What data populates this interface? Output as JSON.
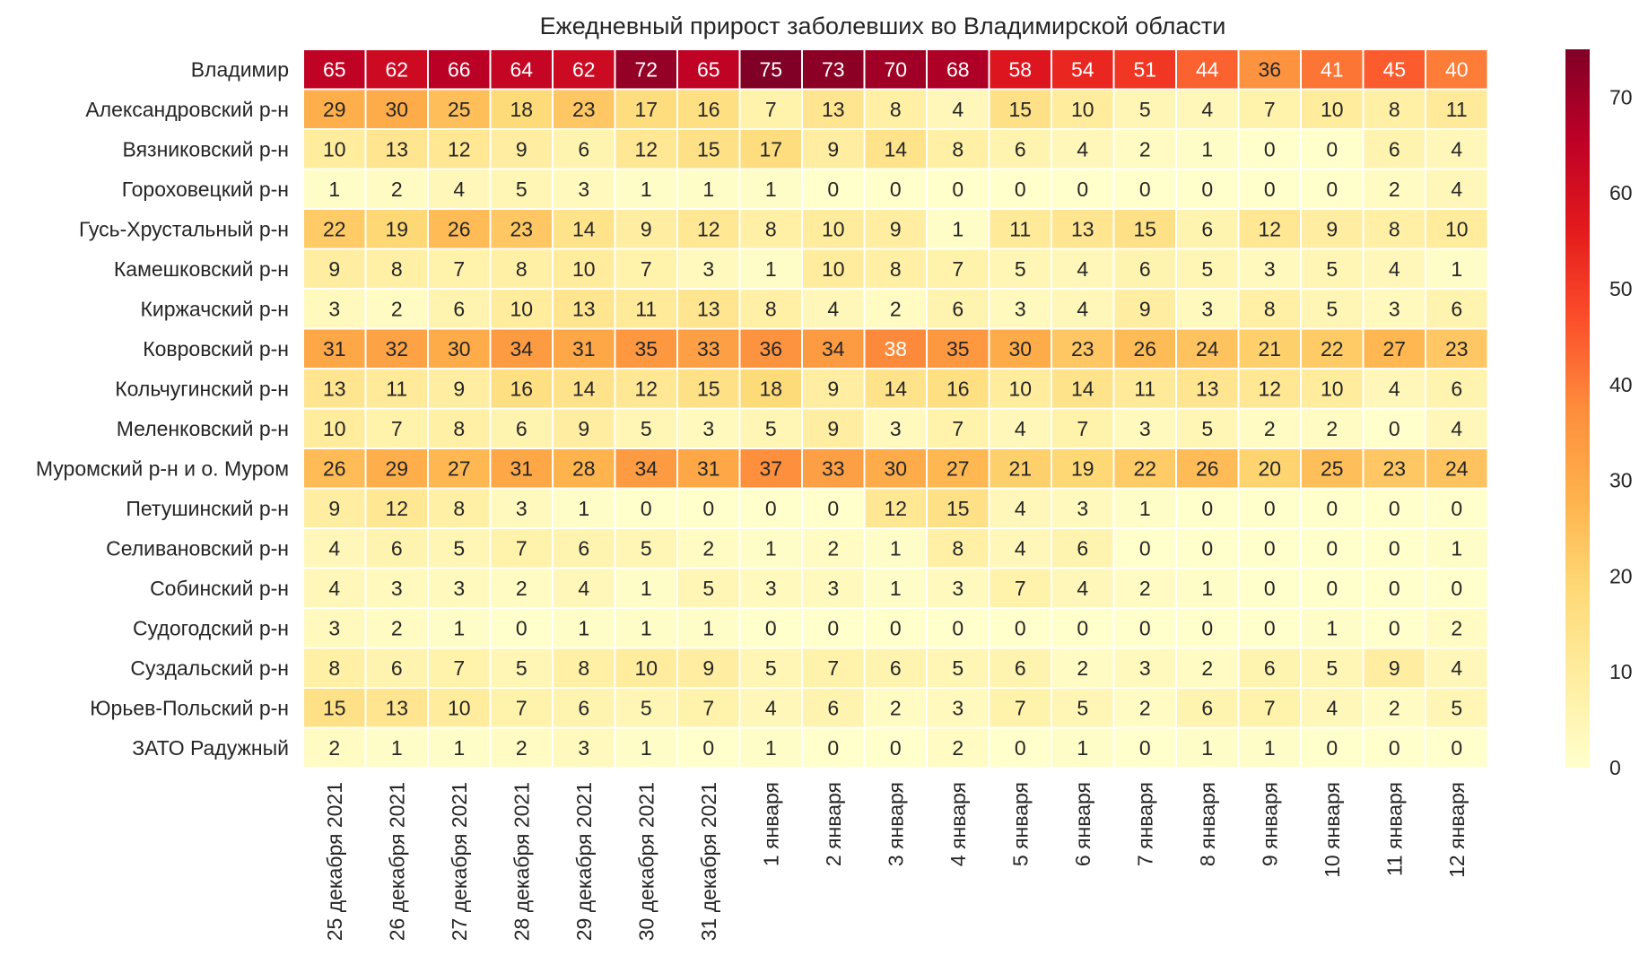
{
  "chart_data": {
    "type": "heatmap",
    "title": "Ежедневный прирост заболевших во Владимирской области",
    "xlabel": "",
    "ylabel": "",
    "columns": [
      "25 декабря 2021",
      "26 декабря 2021",
      "27 декабря 2021",
      "28 декабря 2021",
      "29 декабря 2021",
      "30 декабря 2021",
      "31 декабря 2021",
      "1 января",
      "2 января",
      "3 января",
      "4 января",
      "5 января",
      "6 января",
      "7 января",
      "8 января",
      "9 января",
      "10 января",
      "11 января",
      "12 января"
    ],
    "rows": [
      "Владимир",
      "Александровский р-н",
      "Вязниковский р-н",
      "Гороховецкий р-н",
      "Гусь-Хрустальный р-н",
      "Камешковский р-н",
      "Киржачский р-н",
      "Ковровский р-н",
      "Кольчугинский р-н",
      "Меленковский р-н",
      "Муромский р-н и о. Муром",
      "Петушинский р-н",
      "Селивановский р-н",
      "Собинский р-н",
      "Судогодский р-н",
      "Суздальский р-н",
      "Юрьев-Польский р-н",
      "ЗАТО Радужный"
    ],
    "values": [
      [
        65,
        62,
        66,
        64,
        62,
        72,
        65,
        75,
        73,
        70,
        68,
        58,
        54,
        51,
        44,
        36,
        41,
        45,
        40
      ],
      [
        29,
        30,
        25,
        18,
        23,
        17,
        16,
        7,
        13,
        8,
        4,
        15,
        10,
        5,
        4,
        7,
        10,
        8,
        11
      ],
      [
        10,
        13,
        12,
        9,
        6,
        12,
        15,
        17,
        9,
        14,
        8,
        6,
        4,
        2,
        1,
        0,
        0,
        6,
        4
      ],
      [
        1,
        2,
        4,
        5,
        3,
        1,
        1,
        1,
        0,
        0,
        0,
        0,
        0,
        0,
        0,
        0,
        0,
        2,
        4
      ],
      [
        22,
        19,
        26,
        23,
        14,
        9,
        12,
        8,
        10,
        9,
        1,
        11,
        13,
        15,
        6,
        12,
        9,
        8,
        10
      ],
      [
        9,
        8,
        7,
        8,
        10,
        7,
        3,
        1,
        10,
        8,
        7,
        5,
        4,
        6,
        5,
        3,
        5,
        4,
        1
      ],
      [
        3,
        2,
        6,
        10,
        13,
        11,
        13,
        8,
        4,
        2,
        6,
        3,
        4,
        9,
        3,
        8,
        5,
        3,
        6
      ],
      [
        31,
        32,
        30,
        34,
        31,
        35,
        33,
        36,
        34,
        38,
        35,
        30,
        23,
        26,
        24,
        21,
        22,
        27,
        23
      ],
      [
        13,
        11,
        9,
        16,
        14,
        12,
        15,
        18,
        9,
        14,
        16,
        10,
        14,
        11,
        13,
        12,
        10,
        4,
        6
      ],
      [
        10,
        7,
        8,
        6,
        9,
        5,
        3,
        5,
        9,
        3,
        7,
        4,
        7,
        3,
        5,
        2,
        2,
        0,
        4
      ],
      [
        26,
        29,
        27,
        31,
        28,
        34,
        31,
        37,
        33,
        30,
        27,
        21,
        19,
        22,
        26,
        20,
        25,
        23,
        24
      ],
      [
        9,
        12,
        8,
        3,
        1,
        0,
        0,
        0,
        0,
        12,
        15,
        4,
        3,
        1,
        0,
        0,
        0,
        0,
        0
      ],
      [
        4,
        6,
        5,
        7,
        6,
        5,
        2,
        1,
        2,
        1,
        8,
        4,
        6,
        0,
        0,
        0,
        0,
        0,
        1
      ],
      [
        4,
        3,
        3,
        2,
        4,
        1,
        5,
        3,
        3,
        1,
        3,
        7,
        4,
        2,
        1,
        0,
        0,
        0,
        0
      ],
      [
        3,
        2,
        1,
        0,
        1,
        1,
        1,
        0,
        0,
        0,
        0,
        0,
        0,
        0,
        0,
        0,
        1,
        0,
        2
      ],
      [
        8,
        6,
        7,
        5,
        8,
        10,
        9,
        5,
        7,
        6,
        5,
        6,
        2,
        3,
        2,
        6,
        5,
        9,
        4
      ],
      [
        15,
        13,
        10,
        7,
        6,
        5,
        7,
        4,
        6,
        2,
        3,
        7,
        5,
        2,
        6,
        7,
        4,
        2,
        5
      ],
      [
        2,
        1,
        1,
        2,
        3,
        1,
        0,
        1,
        0,
        0,
        2,
        0,
        1,
        0,
        1,
        1,
        0,
        0,
        0
      ]
    ],
    "colorbar": {
      "min": 0,
      "max": 75,
      "ticks": [
        0,
        10,
        20,
        30,
        40,
        50,
        60,
        70
      ],
      "colormap": "YlOrRd",
      "stops": [
        "#ffffcc",
        "#ffeda0",
        "#fed976",
        "#feb24c",
        "#fd8d3c",
        "#fc4e2a",
        "#e31a1c",
        "#bd0026",
        "#800026"
      ]
    },
    "label_colors": {
      "dark": "#262626",
      "light": "#ffffff"
    },
    "grid_line_color": "#ffffff"
  }
}
